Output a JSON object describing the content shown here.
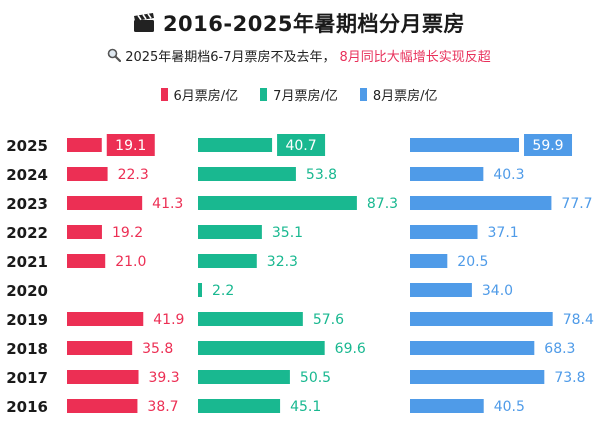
{
  "title": "2016-2025年暑期档分月票房",
  "subtitle": {
    "part1": "2025年暑期档6-7月票房不及去年，",
    "part2": "8月同比大幅增长实现反超"
  },
  "icons": {
    "title_icon": "clapperboard-icon",
    "subtitle_icon": "search-icon"
  },
  "colors": {
    "june": "#ec2f54",
    "july": "#19b890",
    "august": "#4f9be8",
    "text": "#1a1a1a",
    "highlight_text": "#ffffff"
  },
  "legend_position": "top-center",
  "chart_data": {
    "type": "bar",
    "orientation": "horizontal",
    "categories": [
      "2025",
      "2024",
      "2023",
      "2022",
      "2021",
      "2020",
      "2019",
      "2018",
      "2017",
      "2016"
    ],
    "series": [
      {
        "name": "6月票房/亿",
        "values": [
          19.1,
          22.3,
          41.3,
          19.2,
          21.0,
          null,
          41.9,
          35.8,
          39.3,
          38.7
        ],
        "labels": [
          "19.1",
          "22.3",
          "41.3",
          "19.2",
          "21.0",
          "",
          "41.9",
          "35.8",
          "39.3",
          "38.7"
        ],
        "highlight_index": 0
      },
      {
        "name": "7月票房/亿",
        "values": [
          40.7,
          53.8,
          87.3,
          35.1,
          32.3,
          2.2,
          57.6,
          69.6,
          50.5,
          45.1
        ],
        "labels": [
          "40.7",
          "53.8",
          "87.3",
          "35.1",
          "32.3",
          "2.2",
          "57.6",
          "69.6",
          "50.5",
          "45.1"
        ],
        "highlight_index": 0
      },
      {
        "name": "8月票房/亿",
        "values": [
          59.9,
          40.3,
          77.7,
          37.1,
          20.5,
          34.0,
          78.4,
          68.3,
          73.8,
          40.5
        ],
        "labels": [
          "59.9",
          "40.3",
          "77.7",
          "37.1",
          "20.5",
          "34.0",
          "78.4",
          "68.3",
          "73.8",
          "40.5"
        ],
        "highlight_index": 0
      }
    ]
  }
}
